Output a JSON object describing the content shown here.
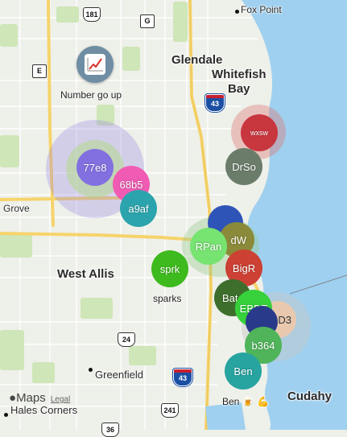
{
  "map": {
    "places": {
      "fox_point": "Fox Point",
      "glendale": "Glendale",
      "whitefish_bay_1": "Whitefish",
      "whitefish_bay_2": "Bay",
      "grove": "Grove",
      "west_allis": "West Allis",
      "greenfield": "Greenfield",
      "cudahy": "Cudahy",
      "hales_corners": "Hales Corners"
    },
    "shields": {
      "us181": "181",
      "g": "G",
      "e": "E",
      "i43_north": "43",
      "i43_south": "43",
      "r24": "24",
      "r241": "241",
      "r36": "36"
    },
    "chart_poi": {
      "label": "Number go up",
      "icon": "line-chart-icon"
    },
    "sparks_label": "sparks",
    "ben_label": "Ben 🍺 💪",
    "attribution": {
      "apple_maps": "Maps",
      "legal": "Legal"
    },
    "colors": {
      "water": "#9fd0ef",
      "park": "#cfe6b8",
      "highway": "#f6d46b",
      "interstate_shield": "#1a4fa3"
    }
  },
  "markers": [
    {
      "id": "77e8",
      "label": "77e8",
      "color": "#8270e0"
    },
    {
      "id": "68b5",
      "label": "68b5",
      "color": "#f05bb3"
    },
    {
      "id": "a9af",
      "label": "a9af",
      "color": "#2ba4ad"
    },
    {
      "id": "wxsw",
      "label": "wxsw",
      "color": "#c8363e"
    },
    {
      "id": "drso",
      "label": "DrSo",
      "color": "#6b7d6a"
    },
    {
      "id": "blue",
      "label": "",
      "color": "#2f54b8"
    },
    {
      "id": "dw",
      "label": "dW",
      "color": "#8a8a3a"
    },
    {
      "id": "rpan",
      "label": "RPan",
      "color": "#77e371"
    },
    {
      "id": "sprk",
      "label": "sprk",
      "color": "#3dba1d"
    },
    {
      "id": "bigr",
      "label": "BigR",
      "color": "#cc4133"
    },
    {
      "id": "bat",
      "label": "Bat",
      "color": "#3e6e2c"
    },
    {
      "id": "ebdt",
      "label": "EBDT",
      "color": "#36d13b"
    },
    {
      "id": "d3",
      "label": "D3",
      "color": "#e8c9b0"
    },
    {
      "id": "navy",
      "label": "",
      "color": "#2a3a8a"
    },
    {
      "id": "b364",
      "label": "b364",
      "color": "#4fb45a"
    },
    {
      "id": "ben",
      "label": "Ben",
      "color": "#27a3a0"
    }
  ]
}
